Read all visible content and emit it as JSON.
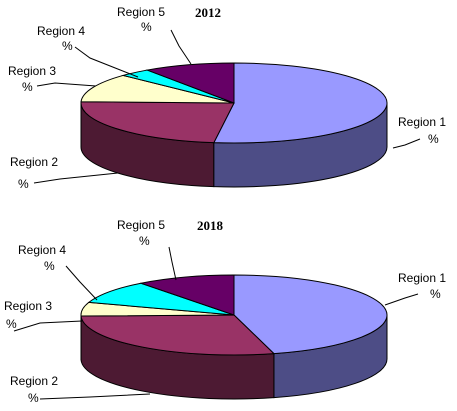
{
  "chart_data": [
    {
      "type": "pie",
      "title": "2012",
      "slices": [
        {
          "label": "Region 1",
          "value": 52.1,
          "value_label": "%",
          "color": "#9999ff",
          "side_color": "#4d4d86"
        },
        {
          "label": "Region 2",
          "value": 23.4,
          "value_label": "%",
          "color": "#993366",
          "side_color": "#4d1a33"
        },
        {
          "label": "Region 3",
          "value": 11.6,
          "value_label": "%",
          "color": "#ffffcc",
          "side_color": "#808066"
        },
        {
          "label": "Region 4",
          "value": 3.3,
          "value_label": "%",
          "color": "#00ffff",
          "side_color": "#008080"
        },
        {
          "label": "Region 5",
          "value": 9.6,
          "value_label": "%",
          "color": "#660066",
          "side_color": "#330033"
        }
      ]
    },
    {
      "type": "pie",
      "title": "2018",
      "slices": [
        {
          "label": "Region 1",
          "value": 45.8,
          "value_label": "%",
          "color": "#9999ff",
          "side_color": "#4d4d86"
        },
        {
          "label": "Region 2",
          "value": 28.8,
          "value_label": "%",
          "color": "#993366",
          "side_color": "#4d1a33"
        },
        {
          "label": "Region 3",
          "value": 5.5,
          "value_label": "%",
          "color": "#ffffcc",
          "side_color": "#808066"
        },
        {
          "label": "Region 4",
          "value": 9.5,
          "value_label": "%",
          "color": "#00ffff",
          "side_color": "#008080"
        },
        {
          "label": "Region 5",
          "value": 10.4,
          "value_label": "%",
          "color": "#660066",
          "side_color": "#330033"
        }
      ]
    }
  ]
}
